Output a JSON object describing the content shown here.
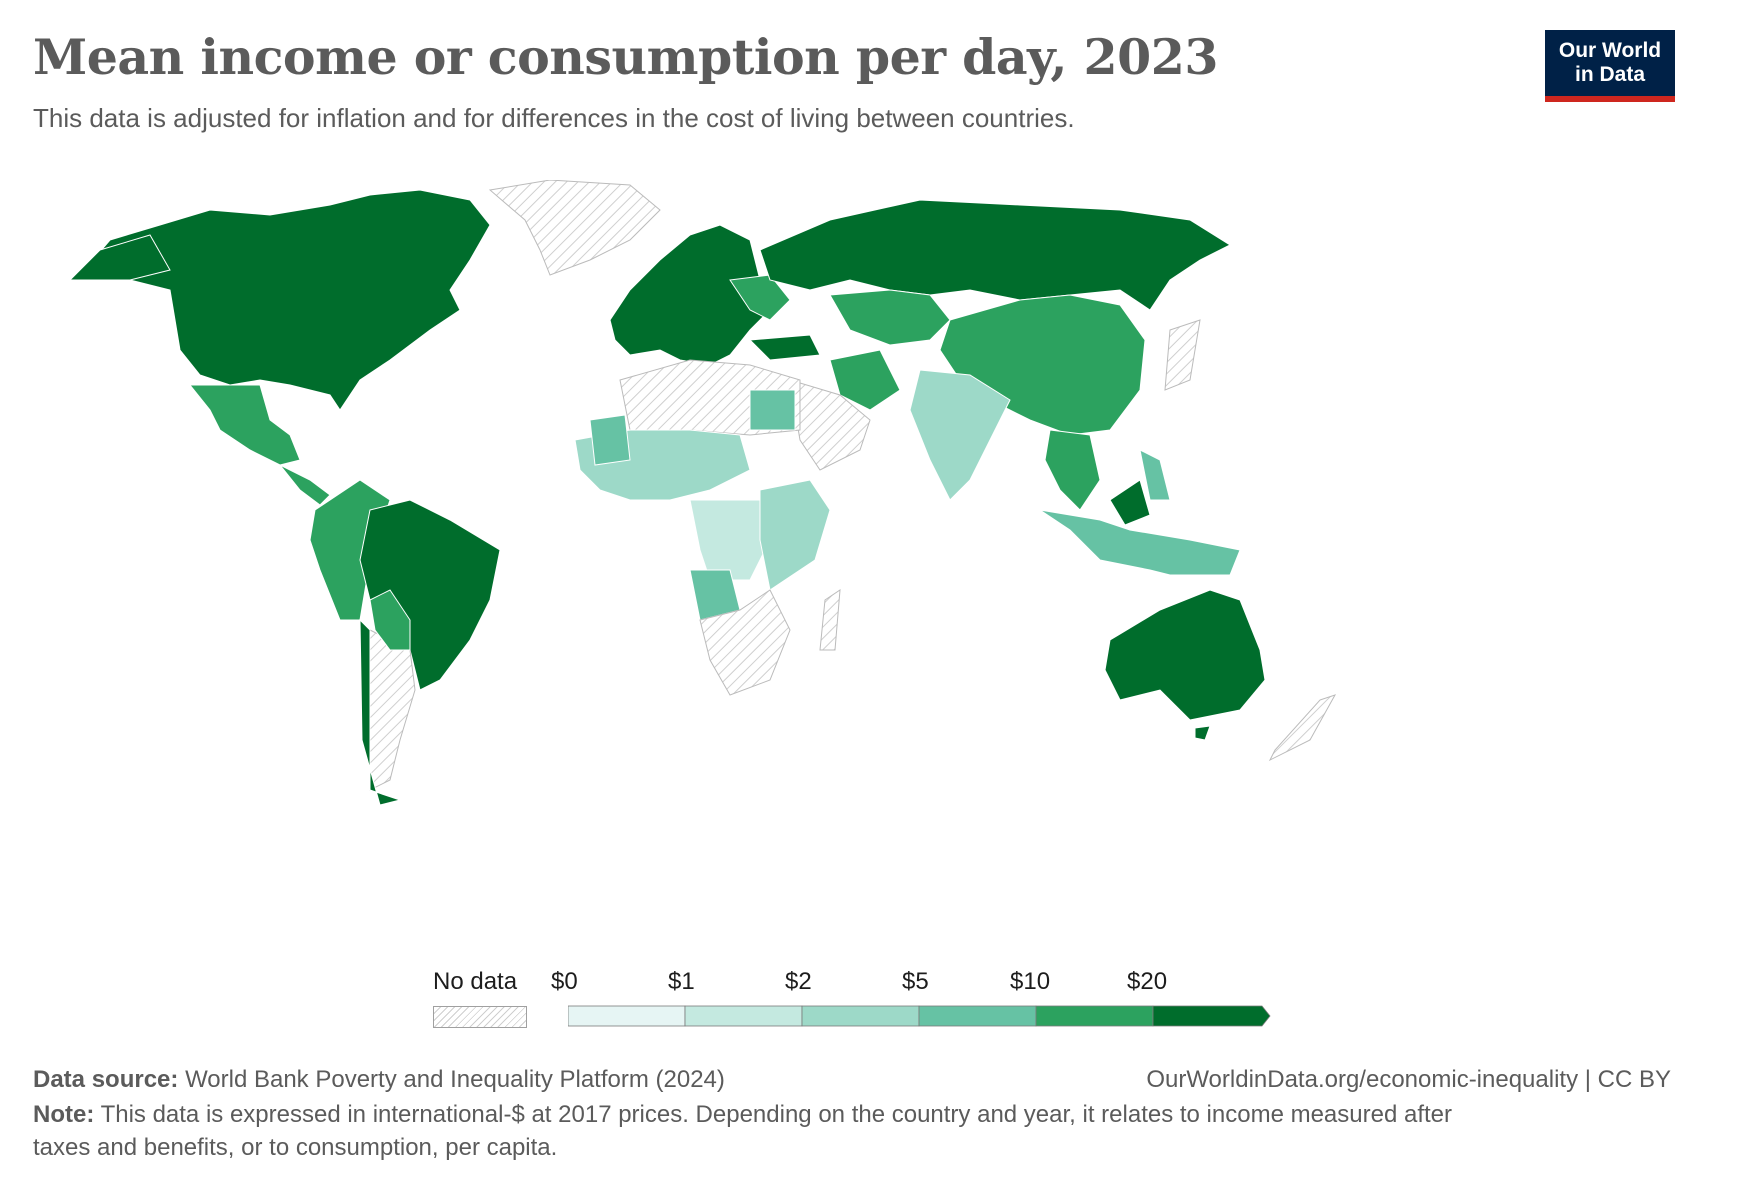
{
  "header": {
    "title": "Mean income or consumption per day, 2023",
    "subtitle": "This data is adjusted for inflation and for differences in the cost of living between countries."
  },
  "logo": {
    "line1": "Our World",
    "line2": "in Data"
  },
  "legend": {
    "no_data_label": "No data",
    "ticks": [
      "$0",
      "$1",
      "$2",
      "$5",
      "$10",
      "$20"
    ],
    "colors": [
      "#e6f5f4",
      "#c4e9e0",
      "#9dd9c8",
      "#66c2a4",
      "#2ca25f",
      "#006d2c"
    ],
    "no_data_color": "#e2e2e2"
  },
  "footer": {
    "source_label": "Data source:",
    "source_text": "World Bank Poverty and Inequality Platform (2024)",
    "url_text": "OurWorldinData.org/economic-inequality | CC BY",
    "note_label": "Note:",
    "note_line1": "This data is expressed in international-$ at 2017 prices. Depending on the country and year, it relates to income measured after",
    "note_line2": "taxes and benefits, or to consumption, per capita."
  }
}
